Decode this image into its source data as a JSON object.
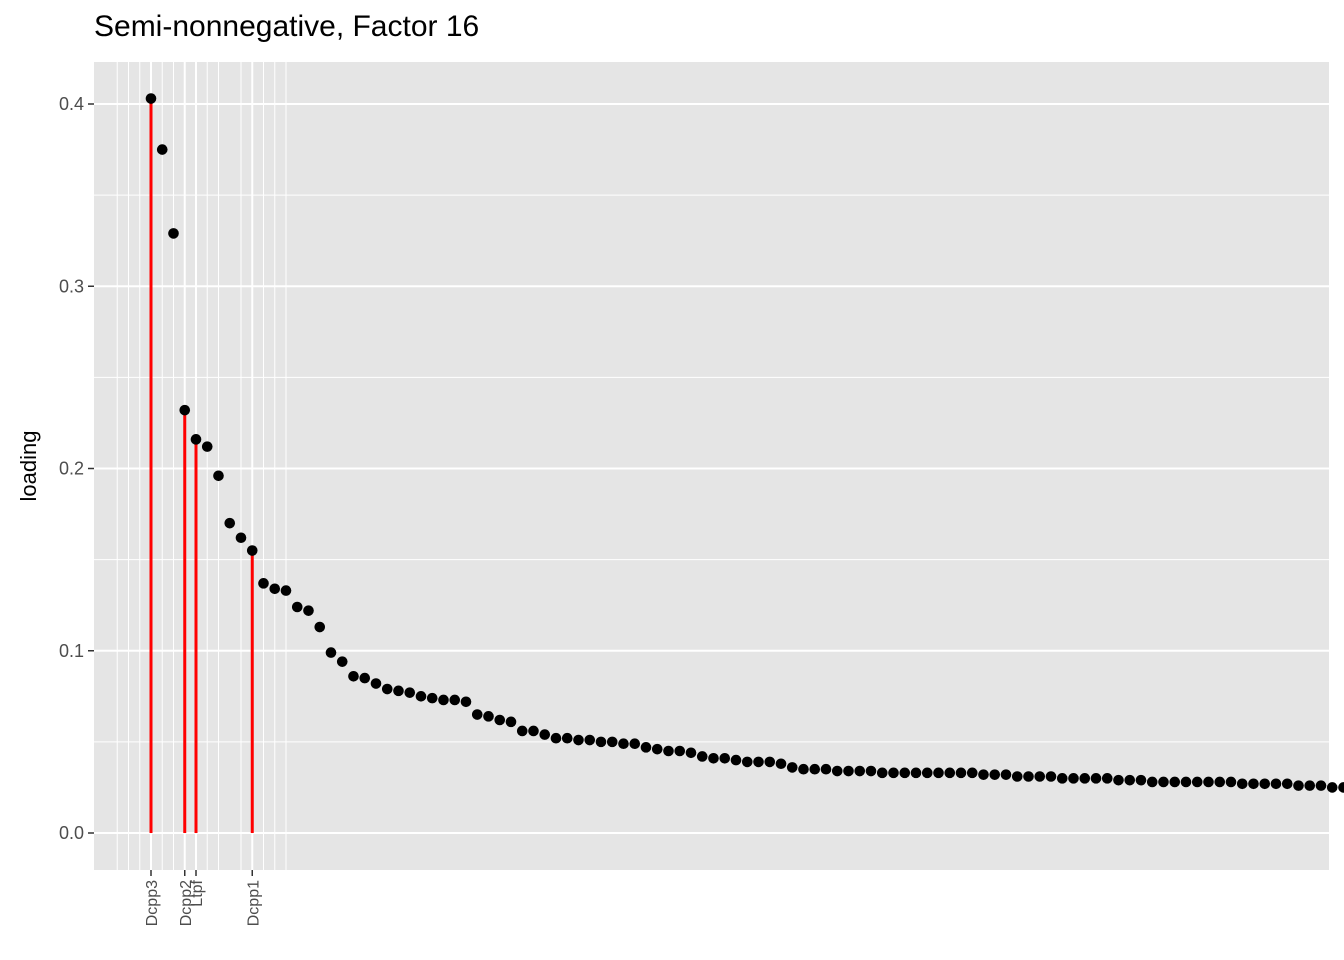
{
  "chart_data": {
    "type": "scatter",
    "title": "Semi-nonnegative, Factor 16",
    "xlabel": "",
    "ylabel": "loading",
    "ylim": [
      -0.02,
      0.42
    ],
    "yticks": [
      0.0,
      0.1,
      0.2,
      0.3,
      0.4
    ],
    "ytick_labels": [
      "0.0",
      "0.1",
      "0.2",
      "0.3",
      "0.4"
    ],
    "grid": true,
    "colors": {
      "point": "#000000",
      "highlight": "#ff0000",
      "panel": "#e5e5e5",
      "grid": "#ffffff"
    },
    "values": [
      0.403,
      0.375,
      0.329,
      0.232,
      0.216,
      0.212,
      0.196,
      0.17,
      0.162,
      0.155,
      0.137,
      0.134,
      0.133,
      0.124,
      0.122,
      0.113,
      0.099,
      0.094,
      0.086,
      0.085,
      0.082,
      0.079,
      0.078,
      0.077,
      0.075,
      0.074,
      0.073,
      0.073,
      0.072,
      0.065,
      0.064,
      0.062,
      0.061,
      0.056,
      0.056,
      0.054,
      0.052,
      0.052,
      0.051,
      0.051,
      0.05,
      0.05,
      0.049,
      0.049,
      0.047,
      0.046,
      0.045,
      0.045,
      0.044,
      0.042,
      0.041,
      0.041,
      0.04,
      0.039,
      0.039,
      0.039,
      0.038,
      0.036,
      0.035,
      0.035,
      0.035,
      0.034,
      0.034,
      0.034,
      0.034,
      0.033,
      0.033,
      0.033,
      0.033,
      0.033,
      0.033,
      0.033,
      0.033,
      0.033,
      0.032,
      0.032,
      0.032,
      0.031,
      0.031,
      0.031,
      0.031,
      0.03,
      0.03,
      0.03,
      0.03,
      0.03,
      0.029,
      0.029,
      0.029,
      0.028,
      0.028,
      0.028,
      0.028,
      0.028,
      0.028,
      0.028,
      0.028,
      0.027,
      0.027,
      0.027,
      0.027,
      0.027,
      0.026,
      0.026,
      0.026,
      0.025,
      0.025,
      0.024
    ],
    "highlighted": [
      {
        "index": 1,
        "label": "Dcpp3"
      },
      {
        "index": 4,
        "label": "Dcpp2"
      },
      {
        "index": 5,
        "label": "Ltpf"
      },
      {
        "index": 10,
        "label": "Dcpp1"
      }
    ],
    "extra_gridline_indices": [
      -2,
      -1,
      0,
      2,
      3,
      6,
      7,
      9,
      11,
      12,
      13
    ]
  }
}
